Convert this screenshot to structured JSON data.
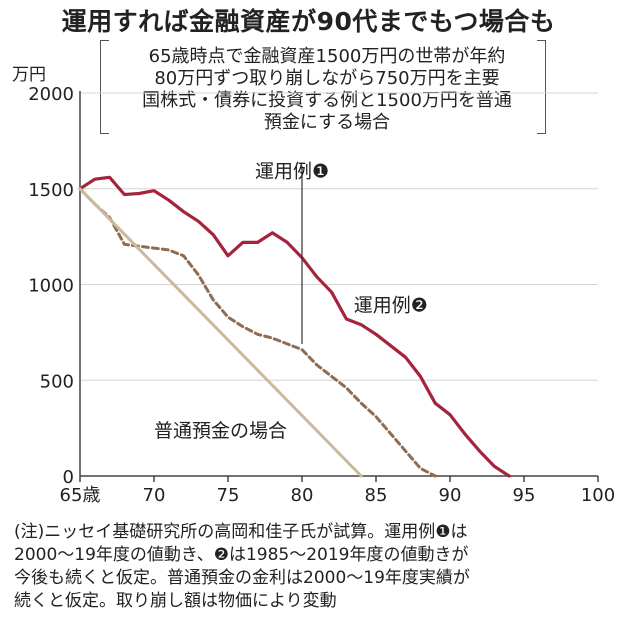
{
  "title": "運用すれば金融資産が90代までもつ場合も",
  "description_lines": [
    "65歳時点で金融資産1500万円の世帯が年約",
    "80万円ずつ取り崩しながら750万円を主要",
    "国株式・債券に投資する例と1500万円を普通",
    "預金にする場合"
  ],
  "note_lines": [
    "(注)ニッセイ基礎研究所の高岡和佳子氏が試算。運用例❶は",
    "2000～19年度の値動き、❷は1985～2019年度の値動きが",
    "今後も続くと仮定。普通預金の金利は2000～19年度実績が",
    "続くと仮定。取り崩し額は物価により変動"
  ],
  "colors": {
    "series1": "#a3243b",
    "series2": "#8c6d55",
    "savings": "#cbb89d",
    "axis": "#444444",
    "grid": "#d4d4d4"
  },
  "chart_data": {
    "type": "line",
    "ylabel": "万円",
    "ylim": [
      0,
      2000
    ],
    "xlim": [
      65,
      100
    ],
    "yticks": [
      0,
      500,
      1000,
      1500,
      2000
    ],
    "xticks": [
      {
        "value": 65,
        "label": "65歳"
      },
      {
        "value": 70,
        "label": "70"
      },
      {
        "value": 75,
        "label": "75"
      },
      {
        "value": 80,
        "label": "80"
      },
      {
        "value": 85,
        "label": "85"
      },
      {
        "value": 90,
        "label": "90"
      },
      {
        "value": 95,
        "label": "95"
      },
      {
        "value": 100,
        "label": "100"
      }
    ],
    "grid": "horizontal",
    "series": [
      {
        "name": "運用例❶",
        "style": "solid",
        "x": [
          65,
          66,
          67,
          68,
          69,
          70,
          71,
          72,
          73,
          74,
          75,
          76,
          77,
          78,
          79,
          80,
          81,
          82,
          83,
          84,
          85,
          86,
          87,
          88,
          89,
          90,
          91,
          92,
          93,
          94
        ],
        "y": [
          1500,
          1550,
          1560,
          1470,
          1475,
          1490,
          1440,
          1380,
          1330,
          1260,
          1150,
          1220,
          1220,
          1270,
          1220,
          1140,
          1040,
          960,
          820,
          790,
          740,
          680,
          620,
          520,
          380,
          320,
          220,
          130,
          50,
          0
        ]
      },
      {
        "name": "運用例❷",
        "style": "dashed",
        "x": [
          65,
          66,
          67,
          68,
          69,
          70,
          71,
          72,
          73,
          74,
          75,
          76,
          77,
          78,
          79,
          80,
          81,
          82,
          83,
          84,
          85,
          86,
          87,
          88,
          89
        ],
        "y": [
          1500,
          1420,
          1350,
          1210,
          1200,
          1190,
          1180,
          1150,
          1050,
          920,
          830,
          780,
          740,
          720,
          690,
          660,
          580,
          520,
          460,
          380,
          310,
          220,
          130,
          40,
          0
        ]
      },
      {
        "name": "普通預金の場合",
        "style": "solid",
        "x": [
          65,
          84
        ],
        "y": [
          1500,
          0
        ]
      }
    ]
  }
}
